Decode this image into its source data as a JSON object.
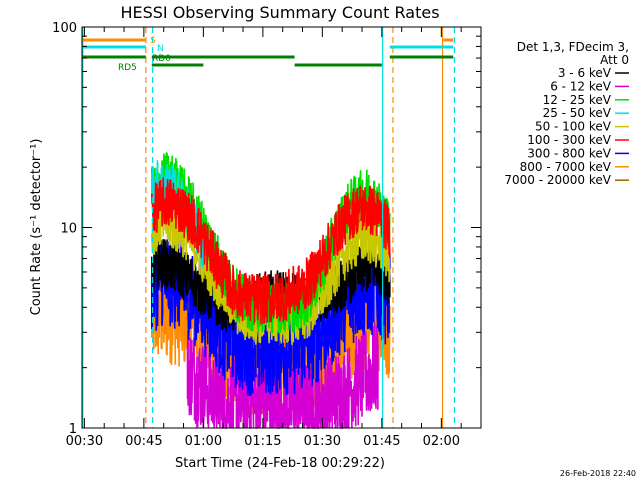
{
  "chart_data": {
    "type": "line",
    "title": "HESSI Observing Summary Count Rates",
    "xlabel": "Start Time (24-Feb-18 00:29:22)",
    "ylabel": "Count Rate (s⁻¹ detector⁻¹)",
    "yscale": "log",
    "ylim": [
      1,
      100
    ],
    "xlim_minutes": [
      29.4,
      130
    ],
    "y_ticks": [
      {
        "value": 1,
        "label": "1"
      },
      {
        "value": 10,
        "label": "10"
      },
      {
        "value": 100,
        "label": "100"
      }
    ],
    "x_ticks": [
      {
        "minute": 30,
        "label": "00:30"
      },
      {
        "minute": 45,
        "label": "00:45"
      },
      {
        "minute": 60,
        "label": "01:00"
      },
      {
        "minute": 75,
        "label": "01:15"
      },
      {
        "minute": 90,
        "label": "01:30"
      },
      {
        "minute": 105,
        "label": "01:45"
      },
      {
        "minute": 120,
        "label": "02:00"
      }
    ],
    "legend_header": [
      "Det 1,3, FDecim 3,",
      "Att 0"
    ],
    "legend_position": "right",
    "series": [
      {
        "name": "3 - 6 keV",
        "color": "#000000",
        "x": [
          47,
          49,
          51,
          53,
          55,
          57,
          59,
          61,
          63,
          65,
          67,
          69,
          71,
          73,
          75,
          77,
          79,
          81,
          83,
          85,
          87,
          89,
          91,
          93,
          95,
          97,
          99,
          101,
          103,
          105,
          107
        ],
        "y": [
          6.0,
          6.8,
          6.5,
          6.2,
          5.8,
          5.5,
          5.0,
          4.6,
          4.3,
          4.1,
          4.0,
          4.0,
          4.2,
          4.3,
          4.5,
          4.6,
          4.7,
          4.6,
          4.4,
          4.2,
          4.3,
          4.5,
          4.6,
          4.8,
          5.2,
          5.6,
          6.0,
          6.3,
          6.3,
          6.1,
          5.5
        ]
      },
      {
        "name": "6 - 12 keV",
        "color": "#d400d4",
        "x": [
          56,
          60,
          64,
          68,
          72,
          76,
          80,
          84,
          88,
          92,
          96,
          100,
          104
        ],
        "y": [
          2.0,
          1.6,
          1.4,
          1.3,
          1.3,
          1.3,
          1.3,
          1.3,
          1.3,
          1.4,
          1.5,
          1.8,
          2.0
        ]
      },
      {
        "name": "12 - 25 keV",
        "color": "#00e000",
        "x": [
          47,
          49,
          51,
          53,
          55,
          57,
          59,
          61,
          63,
          65,
          67,
          69,
          71,
          73,
          75,
          77,
          79,
          81,
          83,
          85,
          87,
          89,
          91,
          93,
          95,
          97,
          99,
          101,
          103,
          105,
          107
        ],
        "y": [
          15,
          17,
          18,
          17,
          15,
          13,
          11,
          9,
          7.5,
          6.0,
          5.0,
          4.5,
          4.2,
          4.0,
          4.0,
          4.0,
          4.0,
          4.0,
          4.0,
          4.2,
          4.6,
          5.5,
          7.0,
          9.0,
          11,
          13,
          14,
          15,
          14,
          12,
          10
        ]
      },
      {
        "name": "25 - 50 keV",
        "color": "#00e0e0",
        "x": [
          47,
          49,
          51,
          53,
          55,
          57,
          59,
          61
        ],
        "y": [
          16,
          16.5,
          16,
          15,
          13,
          11,
          9,
          7.5
        ]
      },
      {
        "name": "50 - 100 keV",
        "color": "#c8c800",
        "x": [
          47,
          49,
          51,
          53,
          55,
          57,
          59,
          61,
          63,
          65,
          67,
          69,
          71,
          73,
          75,
          77,
          79,
          81,
          83,
          85,
          87,
          89,
          91,
          93,
          95,
          97,
          99,
          101,
          103,
          105,
          107
        ],
        "y": [
          9.5,
          10.5,
          10.5,
          10,
          9.5,
          8.5,
          7.5,
          6.5,
          5.5,
          4.8,
          4.2,
          3.8,
          3.5,
          3.5,
          3.5,
          3.5,
          3.5,
          3.5,
          3.5,
          3.6,
          3.8,
          4.3,
          5.0,
          6.0,
          7.0,
          8.0,
          8.5,
          9.0,
          8.5,
          8.0,
          7.0
        ]
      },
      {
        "name": "100 - 300 keV",
        "color": "#ff0000",
        "x": [
          47,
          49,
          51,
          53,
          55,
          57,
          59,
          61,
          63,
          65,
          67,
          69,
          71,
          73,
          75,
          77,
          79,
          81,
          83,
          85,
          87,
          89,
          91,
          93,
          95,
          97,
          99,
          101,
          103,
          105,
          107
        ],
        "y": [
          12,
          13,
          13.5,
          13,
          12,
          11,
          9.5,
          8.0,
          6.8,
          5.8,
          5.0,
          4.6,
          4.5,
          4.4,
          4.4,
          4.4,
          4.5,
          4.6,
          4.8,
          5.0,
          5.5,
          6.5,
          7.5,
          9.0,
          10.5,
          11.5,
          12.5,
          12.5,
          12,
          11,
          9.5
        ]
      },
      {
        "name": "300 - 800 keV",
        "color": "#0000ff",
        "x": [
          47,
          49,
          51,
          53,
          55,
          57,
          59,
          61,
          63,
          65,
          67,
          69,
          71,
          73,
          75,
          77,
          79,
          81,
          83,
          85,
          87,
          89,
          91,
          93,
          95,
          97,
          99,
          101,
          103,
          105,
          107
        ],
        "y": [
          5.0,
          5.5,
          5.5,
          5.3,
          5.0,
          4.6,
          4.2,
          3.8,
          3.4,
          3.0,
          2.8,
          2.6,
          2.5,
          2.5,
          2.5,
          2.5,
          2.5,
          2.5,
          2.5,
          2.6,
          2.7,
          2.9,
          3.2,
          3.6,
          4.0,
          4.4,
          4.7,
          4.9,
          4.9,
          4.7,
          4.3
        ]
      },
      {
        "name": "800 - 7000 keV",
        "color": "#ff8c00",
        "x": [
          47,
          49,
          51,
          53,
          55,
          57,
          59,
          61,
          63,
          65,
          67,
          69,
          71,
          73,
          75,
          77,
          79,
          81,
          83,
          85,
          87,
          89,
          91,
          93,
          95,
          97,
          99,
          101,
          103,
          105,
          107
        ],
        "y": [
          3.5,
          3.6,
          3.6,
          3.5,
          3.4,
          3.2,
          3.0,
          2.7,
          2.5,
          2.3,
          2.2,
          2.1,
          2.0,
          2.0,
          2.0,
          2.0,
          2.0,
          2.0,
          2.0,
          2.0,
          2.0,
          2.1,
          2.2,
          2.4,
          2.6,
          2.8,
          3.0,
          3.2,
          3.3,
          3.2,
          3.0
        ]
      },
      {
        "name": "7000 - 20000 keV",
        "color": "#a06000",
        "x": [],
        "y": []
      }
    ],
    "attenuator_bars": [
      {
        "label": "S",
        "color": "#ff8c00",
        "minute_ranges": [
          [
            29.4,
            45.5
          ],
          [
            120.5,
            123
          ]
        ]
      },
      {
        "label": "N",
        "color": "#00e0e0",
        "minute_ranges": [
          [
            29.4,
            45.5
          ],
          [
            107,
            123
          ]
        ]
      },
      {
        "label": "RD0",
        "color": "#008000",
        "minute_ranges": [
          [
            29.4,
            45.5
          ],
          [
            47,
            83
          ],
          [
            107,
            123
          ]
        ]
      },
      {
        "label": "RD5",
        "color": "#008000",
        "minute_ranges": [
          [
            47,
            60
          ],
          [
            83,
            105
          ]
        ]
      }
    ],
    "vertical_markers": [
      {
        "minute": 29.6,
        "color": "#00e0e0",
        "style": "solid"
      },
      {
        "minute": 45.5,
        "color": "#ff8c00",
        "style": "dashed"
      },
      {
        "minute": 47.2,
        "color": "#00e0e0",
        "style": "dashed"
      },
      {
        "minute": 105.2,
        "color": "#00e0e0",
        "style": "solid"
      },
      {
        "minute": 107.8,
        "color": "#ff8c00",
        "style": "dashed"
      },
      {
        "minute": 120.3,
        "color": "#ff8c00",
        "style": "solid"
      },
      {
        "minute": 123.3,
        "color": "#00e0e0",
        "style": "dashed"
      }
    ],
    "footer_date": "26-Feb-2018 22:40"
  }
}
